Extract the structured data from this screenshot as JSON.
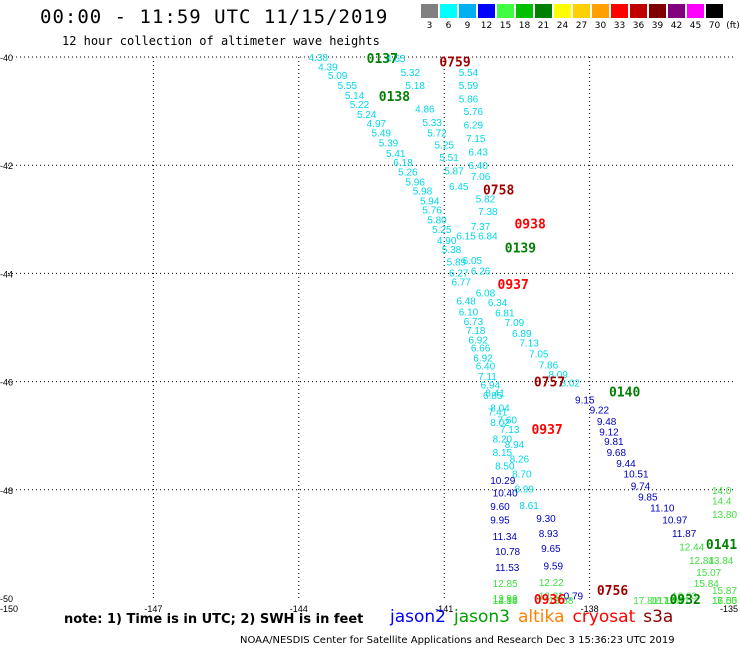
{
  "header": {
    "title": "00:00 - 11:59 UTC 11/15/2019",
    "subtitle": "12 hour collection of altimeter wave heights"
  },
  "color_scale": {
    "unit_label": "(ft)",
    "bins": [
      {
        "label": "3",
        "color": "#808080"
      },
      {
        "label": "6",
        "color": "#00ffff"
      },
      {
        "label": "9",
        "color": "#00b0f0"
      },
      {
        "label": "12",
        "color": "#0000ff"
      },
      {
        "label": "15",
        "color": "#40ff40"
      },
      {
        "label": "18",
        "color": "#00c000"
      },
      {
        "label": "21",
        "color": "#008000"
      },
      {
        "label": "24",
        "color": "#ffff00"
      },
      {
        "label": "27",
        "color": "#ffd000"
      },
      {
        "label": "30",
        "color": "#ffa000"
      },
      {
        "label": "33",
        "color": "#ff0000"
      },
      {
        "label": "36",
        "color": "#c00000"
      },
      {
        "label": "39",
        "color": "#800000"
      },
      {
        "label": "42",
        "color": "#800080"
      },
      {
        "label": "45",
        "color": "#ff00ff"
      },
      {
        "label": "70",
        "color": "#000000"
      }
    ]
  },
  "axes": {
    "lat_labels": [
      "-40",
      "-42",
      "-44",
      "-46",
      "-48",
      "-50"
    ],
    "lon_labels": [
      "-150",
      "-147",
      "-144",
      "-141",
      "-138",
      "-135"
    ],
    "lon_range": [
      -150,
      -135
    ],
    "lat_range": [
      -50,
      -40
    ]
  },
  "colors": {
    "cyan": "#00d8e8",
    "blue": "#0000c0",
    "lightgreen": "#40e040",
    "darkgreen": "#008000",
    "red": "#ff0000",
    "darkred": "#a00000"
  },
  "tracks": [
    {
      "color": "cyan",
      "points": [
        {
          "t": "4.38",
          "lon": -143.8,
          "lat": -40.0
        },
        {
          "t": "4.39",
          "lon": -143.6,
          "lat": -40.18
        },
        {
          "t": "5.09",
          "lon": -143.4,
          "lat": -40.33
        },
        {
          "t": "5.55",
          "lon": -143.2,
          "lat": -40.52
        },
        {
          "t": "5.14",
          "lon": -143.05,
          "lat": -40.7
        },
        {
          "t": "5.22",
          "lon": -142.95,
          "lat": -40.87
        },
        {
          "t": "5.24",
          "lon": -142.8,
          "lat": -41.05
        },
        {
          "t": "4.97",
          "lon": -142.6,
          "lat": -41.22
        },
        {
          "t": "5.49",
          "lon": -142.5,
          "lat": -41.4
        },
        {
          "t": "5.39",
          "lon": -142.35,
          "lat": -41.58
        },
        {
          "t": "5.41",
          "lon": -142.2,
          "lat": -41.77
        },
        {
          "t": "6.18",
          "lon": -142.05,
          "lat": -41.94
        },
        {
          "t": "5.26",
          "lon": -141.95,
          "lat": -42.12
        },
        {
          "t": "5.96",
          "lon": -141.8,
          "lat": -42.3
        },
        {
          "t": "5.98",
          "lon": -141.65,
          "lat": -42.47
        },
        {
          "t": "5.94",
          "lon": -141.5,
          "lat": -42.65
        },
        {
          "t": "5.76",
          "lon": -141.45,
          "lat": -42.82
        },
        {
          "t": "5.80",
          "lon": -141.35,
          "lat": -43.0
        },
        {
          "t": "5.25",
          "lon": -141.25,
          "lat": -43.18
        },
        {
          "t": "4.90",
          "lon": -141.15,
          "lat": -43.38
        },
        {
          "t": "5.38",
          "lon": -141.05,
          "lat": -43.55
        },
        {
          "t": "5.89",
          "lon": -140.95,
          "lat": -43.78
        },
        {
          "t": "6.27",
          "lon": -140.9,
          "lat": -43.98
        },
        {
          "t": "6.77",
          "lon": -140.85,
          "lat": -44.15
        },
        {
          "t": "6.48",
          "lon": -140.75,
          "lat": -44.5
        },
        {
          "t": "6.10",
          "lon": -140.7,
          "lat": -44.7
        },
        {
          "t": "6.73",
          "lon": -140.6,
          "lat": -44.88
        },
        {
          "t": "7.18",
          "lon": -140.55,
          "lat": -45.05
        },
        {
          "t": "6.92",
          "lon": -140.5,
          "lat": -45.22
        },
        {
          "t": "6.66",
          "lon": -140.45,
          "lat": -45.37
        },
        {
          "t": "6.92",
          "lon": -140.4,
          "lat": -45.55
        },
        {
          "t": "6.40",
          "lon": -140.35,
          "lat": -45.7
        },
        {
          "t": "7.11",
          "lon": -140.3,
          "lat": -45.9
        },
        {
          "t": "6.94",
          "lon": -140.25,
          "lat": -46.05
        },
        {
          "t": "6.85",
          "lon": -140.2,
          "lat": -46.25
        },
        {
          "t": "7.41",
          "lon": -140.1,
          "lat": -46.55
        },
        {
          "t": "8.02",
          "lon": -140.05,
          "lat": -46.75
        },
        {
          "t": "8.20",
          "lon": -140.0,
          "lat": -47.05
        },
        {
          "t": "8.15",
          "lon": -140.0,
          "lat": -47.3
        },
        {
          "t": "8.50",
          "lon": -139.95,
          "lat": -47.55
        }
      ]
    },
    {
      "color": "cyan",
      "points": [
        {
          "t": "4.65",
          "lon": -142.2,
          "lat": -40.02
        },
        {
          "t": "5.32",
          "lon": -141.9,
          "lat": -40.28
        },
        {
          "t": "5.18",
          "lon": -141.8,
          "lat": -40.52
        },
        {
          "t": "4.86",
          "lon": -141.6,
          "lat": -40.95
        },
        {
          "t": "5.33",
          "lon": -141.45,
          "lat": -41.2
        },
        {
          "t": "5.72",
          "lon": -141.35,
          "lat": -41.4
        },
        {
          "t": "5.25",
          "lon": -141.2,
          "lat": -41.62
        },
        {
          "t": "5.51",
          "lon": -141.1,
          "lat": -41.85
        },
        {
          "t": "5.87",
          "lon": -141.0,
          "lat": -42.1
        },
        {
          "t": "6.45",
          "lon": -140.9,
          "lat": -42.38
        },
        {
          "t": "6.15",
          "lon": -140.75,
          "lat": -43.3
        },
        {
          "t": "6.05",
          "lon": -140.62,
          "lat": -43.75
        }
      ]
    },
    {
      "color": "cyan",
      "points": [
        {
          "t": "5.54",
          "lon": -140.7,
          "lat": -40.28
        },
        {
          "t": "5.59",
          "lon": -140.7,
          "lat": -40.52
        },
        {
          "t": "5.86",
          "lon": -140.7,
          "lat": -40.77
        },
        {
          "t": "5.76",
          "lon": -140.6,
          "lat": -41.0
        },
        {
          "t": "6.29",
          "lon": -140.6,
          "lat": -41.25
        },
        {
          "t": "7.15",
          "lon": -140.55,
          "lat": -41.5
        },
        {
          "t": "6.43",
          "lon": -140.5,
          "lat": -41.75
        },
        {
          "t": "6.40",
          "lon": -140.5,
          "lat": -42.0
        },
        {
          "t": "7.06",
          "lon": -140.45,
          "lat": -42.2
        },
        {
          "t": "5.82",
          "lon": -140.35,
          "lat": -42.62
        },
        {
          "t": "7.38",
          "lon": -140.3,
          "lat": -42.85
        },
        {
          "t": "7.37",
          "lon": -140.45,
          "lat": -43.12
        },
        {
          "t": "6.84",
          "lon": -140.3,
          "lat": -43.3
        },
        {
          "t": "6.26",
          "lon": -140.45,
          "lat": -43.95
        },
        {
          "t": "6.08",
          "lon": -140.35,
          "lat": -44.35
        },
        {
          "t": "6.34",
          "lon": -140.1,
          "lat": -44.53
        },
        {
          "t": "6.81",
          "lon": -139.95,
          "lat": -44.72
        },
        {
          "t": "7.09",
          "lon": -139.75,
          "lat": -44.9
        },
        {
          "t": "6.89",
          "lon": -139.6,
          "lat": -45.1
        },
        {
          "t": "7.13",
          "lon": -139.45,
          "lat": -45.28
        },
        {
          "t": "7.05",
          "lon": -139.25,
          "lat": -45.48
        },
        {
          "t": "7.86",
          "lon": -139.05,
          "lat": -45.68
        },
        {
          "t": "8.09",
          "lon": -138.85,
          "lat": -45.86
        },
        {
          "t": "8.02",
          "lon": -138.6,
          "lat": -46.02
        }
      ]
    },
    {
      "color": "cyan",
      "points": [
        {
          "t": "8.41",
          "lon": -140.15,
          "lat": -46.2
        },
        {
          "t": "8.04",
          "lon": -140.05,
          "lat": -46.48
        },
        {
          "t": "7.60",
          "lon": -139.9,
          "lat": -46.7
        },
        {
          "t": "7.13",
          "lon": -139.85,
          "lat": -46.88
        },
        {
          "t": "8.94",
          "lon": -139.75,
          "lat": -47.15
        },
        {
          "t": "8.26",
          "lon": -139.65,
          "lat": -47.42
        },
        {
          "t": "8.70",
          "lon": -139.6,
          "lat": -47.7
        },
        {
          "t": "8.99",
          "lon": -139.55,
          "lat": -47.98
        },
        {
          "t": "8.61",
          "lon": -139.45,
          "lat": -48.28
        }
      ]
    },
    {
      "color": "blue",
      "points": [
        {
          "t": "10.29",
          "lon": -140.05,
          "lat": -47.82
        },
        {
          "t": "10.40",
          "lon": -140.0,
          "lat": -48.05
        },
        {
          "t": "9.60",
          "lon": -140.05,
          "lat": -48.3
        },
        {
          "t": "9.95",
          "lon": -140.05,
          "lat": -48.55
        },
        {
          "t": "11.34",
          "lon": -140.0,
          "lat": -48.85
        },
        {
          "t": "10.78",
          "lon": -139.95,
          "lat": -49.13
        },
        {
          "t": "11.53",
          "lon": -139.95,
          "lat": -49.43
        }
      ]
    },
    {
      "color": "blue",
      "points": [
        {
          "t": "9.30",
          "lon": -139.1,
          "lat": -48.52
        },
        {
          "t": "8.93",
          "lon": -139.05,
          "lat": -48.8
        },
        {
          "t": "9.65",
          "lon": -139.0,
          "lat": -49.08
        },
        {
          "t": "9.59",
          "lon": -138.95,
          "lat": -49.4
        },
        {
          "t": "10.79",
          "lon": -138.65,
          "lat": -49.95
        }
      ]
    },
    {
      "color": "blue",
      "points": [
        {
          "t": "9.15",
          "lon": -138.3,
          "lat": -46.33
        },
        {
          "t": "9.22",
          "lon": -138.0,
          "lat": -46.52
        },
        {
          "t": "9.48",
          "lon": -137.85,
          "lat": -46.73
        },
        {
          "t": "9.12",
          "lon": -137.8,
          "lat": -46.92
        },
        {
          "t": "9.81",
          "lon": -137.7,
          "lat": -47.1
        },
        {
          "t": "9.68",
          "lon": -137.65,
          "lat": -47.3
        },
        {
          "t": "9.44",
          "lon": -137.45,
          "lat": -47.5
        },
        {
          "t": "10.51",
          "lon": -137.3,
          "lat": -47.7
        },
        {
          "t": "9.74",
          "lon": -137.15,
          "lat": -47.92
        },
        {
          "t": "9.85",
          "lon": -137.0,
          "lat": -48.12
        },
        {
          "t": "11.10",
          "lon": -136.75,
          "lat": -48.33
        },
        {
          "t": "10.97",
          "lon": -136.5,
          "lat": -48.55
        },
        {
          "t": "11.87",
          "lon": -136.3,
          "lat": -48.8
        }
      ]
    },
    {
      "color": "lightgreen",
      "points": [
        {
          "t": "12.85",
          "lon": -140.0,
          "lat": -49.72
        },
        {
          "t": "12.99",
          "lon": -140.0,
          "lat": -50.0
        },
        {
          "t": "12.54",
          "lon": -140.0,
          "lat": -50.3
        },
        {
          "t": "14.15",
          "lon": -140.0,
          "lat": -50.6
        }
      ]
    },
    {
      "color": "lightgreen",
      "points": [
        {
          "t": "12.22",
          "lon": -139.05,
          "lat": -49.7
        },
        {
          "t": "12.31",
          "lon": -139.05,
          "lat": -49.95
        },
        {
          "t": "13.68",
          "lon": -138.85,
          "lat": -50.47
        }
      ]
    },
    {
      "color": "lightgreen",
      "points": [
        {
          "t": "12.44",
          "lon": -136.15,
          "lat": -49.05
        },
        {
          "t": "12.84",
          "lon": -135.95,
          "lat": -49.3
        },
        {
          "t": "13.84",
          "lon": -135.55,
          "lat": -49.3
        },
        {
          "t": "15.07",
          "lon": -135.8,
          "lat": -49.52
        },
        {
          "t": "15.84",
          "lon": -135.85,
          "lat": -49.72
        },
        {
          "t": "16.63",
          "lon": -136.3,
          "lat": -49.95
        },
        {
          "t": "15.61",
          "lon": -136.45,
          "lat": -50.2
        },
        {
          "t": "17.76",
          "lon": -136.6,
          "lat": -50.45
        },
        {
          "t": "16.15",
          "lon": -136.75,
          "lat": -50.7
        },
        {
          "t": "17.81",
          "lon": -137.1,
          "lat": -50.92
        },
        {
          "t": "15.87",
          "lon": -135.45,
          "lat": -49.85
        },
        {
          "t": "15.05",
          "lon": -135.2,
          "lat": -50.1
        },
        {
          "t": "16.50",
          "lon": -134.9,
          "lat": -50.33
        },
        {
          "t": "17.5",
          "lon": -134.7,
          "lat": -50.58
        },
        {
          "t": "14.0",
          "lon": -134.3,
          "lat": -48.0
        },
        {
          "t": "14.4",
          "lon": -134.3,
          "lat": -48.2
        },
        {
          "t": "13.80",
          "lon": -134.5,
          "lat": -48.45
        }
      ]
    }
  ],
  "time_labels": [
    {
      "t": "0137",
      "color": "darkgreen",
      "lon": -142.6,
      "lat": -40.02
    },
    {
      "t": "0759",
      "color": "darkred",
      "lon": -141.1,
      "lat": -40.08
    },
    {
      "t": "0138",
      "color": "darkgreen",
      "lon": -142.35,
      "lat": -40.72
    },
    {
      "t": "0758",
      "color": "darkred",
      "lon": -140.2,
      "lat": -42.45
    },
    {
      "t": "0938",
      "color": "red",
      "lon": -139.55,
      "lat": -43.08
    },
    {
      "t": "0139",
      "color": "darkgreen",
      "lon": -139.75,
      "lat": -43.52
    },
    {
      "t": "0937",
      "color": "red",
      "lon": -139.9,
      "lat": -44.2
    },
    {
      "t": "0757",
      "color": "darkred",
      "lon": -139.15,
      "lat": -46.0
    },
    {
      "t": "0140",
      "color": "darkgreen",
      "lon": -137.6,
      "lat": -46.18
    },
    {
      "t": "0937",
      "color": "red",
      "lon": -139.2,
      "lat": -46.88
    },
    {
      "t": "0756",
      "color": "darkred",
      "lon": -137.85,
      "lat": -49.85
    },
    {
      "t": "0936",
      "color": "red",
      "lon": -139.15,
      "lat": -50.55
    },
    {
      "t": "0932",
      "color": "darkgreen",
      "lon": -136.35,
      "lat": -50.92
    },
    {
      "t": "0141",
      "color": "darkgreen",
      "lon": -135.6,
      "lat": -49.0
    }
  ],
  "note": "note: 1) Time is in UTC; 2) SWH is in feet",
  "legend": [
    {
      "label": "jason2",
      "color": "#0000ff"
    },
    {
      "label": "jason3",
      "color": "#00a000"
    },
    {
      "label": "altika",
      "color": "#ff8000"
    },
    {
      "label": "cryosat",
      "color": "#ff0000"
    },
    {
      "label": "s3a",
      "color": "#8b0000"
    }
  ],
  "footer": "NOAA/NESDIS Center for Satellite Applications and Research   Dec  3 15:36:23 UTC 2019"
}
